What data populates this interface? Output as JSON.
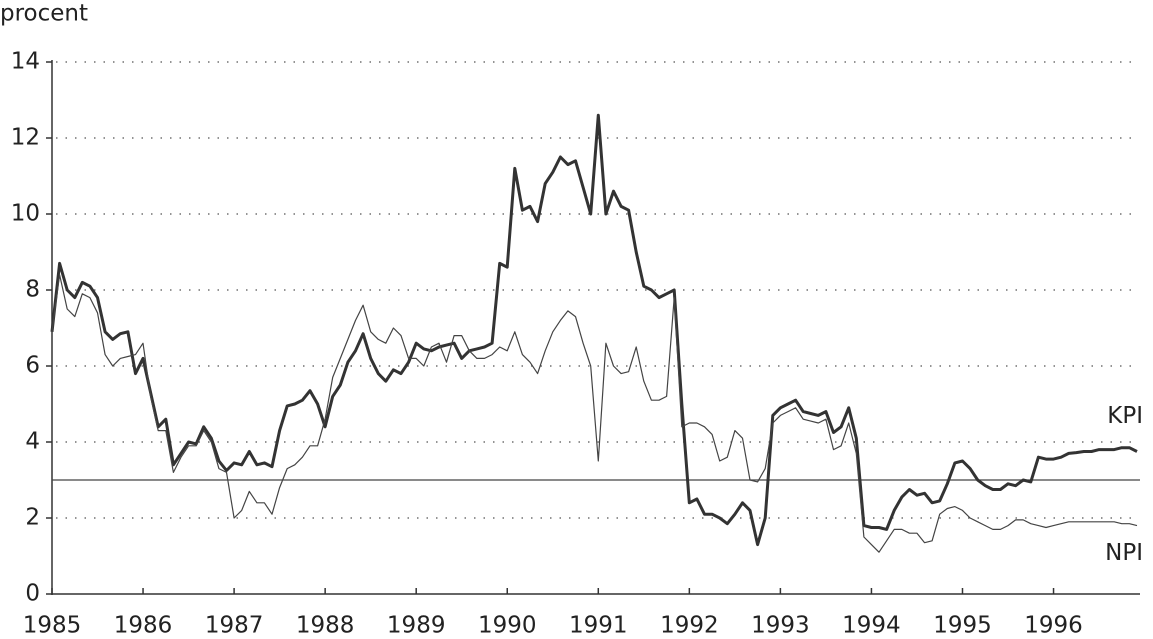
{
  "chart_data": {
    "type": "line",
    "y_label": "procent",
    "categories": [
      "1985",
      null,
      null,
      null,
      null,
      null,
      null,
      null,
      null,
      null,
      null,
      null,
      "1986",
      null,
      null,
      null,
      null,
      null,
      null,
      null,
      null,
      null,
      null,
      null,
      "1987",
      null,
      null,
      null,
      null,
      null,
      null,
      null,
      null,
      null,
      null,
      null,
      "1988",
      null,
      null,
      null,
      null,
      null,
      null,
      null,
      null,
      null,
      null,
      null,
      "1989",
      null,
      null,
      null,
      null,
      null,
      null,
      null,
      null,
      null,
      null,
      null,
      "1990",
      null,
      null,
      null,
      null,
      null,
      null,
      null,
      null,
      null,
      null,
      null,
      "1991",
      null,
      null,
      null,
      null,
      null,
      null,
      null,
      null,
      null,
      null,
      null,
      "1992",
      null,
      null,
      null,
      null,
      null,
      null,
      null,
      null,
      null,
      null,
      null,
      "1993",
      null,
      null,
      null,
      null,
      null,
      null,
      null,
      null,
      null,
      null,
      null,
      "1994",
      null,
      null,
      null,
      null,
      null,
      null,
      null,
      null,
      null,
      null,
      null,
      "1995",
      null,
      null,
      null,
      null,
      null,
      null,
      null,
      null,
      null,
      null,
      null,
      "1996",
      null,
      null,
      null,
      null,
      null,
      null,
      null,
      null,
      null,
      null,
      null
    ],
    "series": [
      {
        "name": "KPI",
        "color": "#333333",
        "width": 3,
        "values": [
          6.9,
          8.7,
          8.0,
          7.8,
          8.2,
          8.1,
          7.8,
          6.9,
          6.7,
          6.85,
          6.9,
          5.8,
          6.2,
          5.3,
          4.4,
          4.6,
          3.4,
          3.7,
          4.0,
          3.95,
          4.4,
          4.1,
          3.5,
          3.25,
          3.45,
          3.4,
          3.75,
          3.4,
          3.45,
          3.35,
          4.3,
          4.95,
          5.0,
          5.1,
          5.35,
          5.0,
          4.4,
          5.2,
          5.5,
          6.1,
          6.4,
          6.85,
          6.2,
          5.8,
          5.6,
          5.9,
          5.8,
          6.1,
          6.6,
          6.45,
          6.4,
          6.5,
          6.55,
          6.6,
          6.2,
          6.4,
          6.45,
          6.5,
          6.6,
          8.7,
          8.6,
          11.2,
          10.1,
          10.2,
          9.8,
          10.8,
          11.1,
          11.5,
          11.3,
          11.4,
          10.7,
          10.0,
          12.6,
          10.0,
          10.6,
          10.2,
          10.1,
          9.0,
          8.1,
          8.0,
          7.8,
          7.9,
          8.0,
          5.0,
          2.4,
          2.5,
          2.1,
          2.1,
          2.0,
          1.85,
          2.1,
          2.4,
          2.2,
          1.3,
          2.0,
          4.7,
          4.9,
          5.0,
          5.1,
          4.8,
          4.75,
          4.7,
          4.8,
          4.25,
          4.4,
          4.9,
          4.1,
          1.8,
          1.75,
          1.75,
          1.7,
          2.2,
          2.55,
          2.75,
          2.6,
          2.65,
          2.4,
          2.45,
          2.9,
          3.45,
          3.5,
          3.3,
          3.0,
          2.85,
          2.75,
          2.75,
          2.9,
          2.85,
          3.0,
          2.95,
          3.6,
          3.55,
          3.55,
          3.6,
          3.7,
          3.72,
          3.75,
          3.75,
          3.8,
          3.8,
          3.8,
          3.85,
          3.85,
          3.75
        ]
      },
      {
        "name": "NPI",
        "color": "#444444",
        "width": 1.2,
        "values": [
          6.9,
          8.4,
          7.5,
          7.3,
          7.9,
          7.8,
          7.4,
          6.3,
          6.0,
          6.2,
          6.25,
          6.3,
          6.6,
          5.2,
          4.3,
          4.3,
          3.2,
          3.6,
          3.9,
          3.9,
          4.3,
          4.0,
          3.3,
          3.2,
          2.0,
          2.2,
          2.7,
          2.4,
          2.4,
          2.1,
          2.8,
          3.3,
          3.4,
          3.6,
          3.9,
          3.9,
          4.6,
          5.7,
          6.2,
          6.7,
          7.2,
          7.6,
          6.9,
          6.7,
          6.6,
          7.0,
          6.8,
          6.2,
          6.2,
          6.0,
          6.5,
          6.6,
          6.1,
          6.8,
          6.8,
          6.4,
          6.2,
          6.2,
          6.3,
          6.5,
          6.4,
          6.9,
          6.3,
          6.1,
          5.8,
          6.4,
          6.9,
          7.2,
          7.45,
          7.3,
          6.6,
          6.0,
          3.5,
          6.6,
          6.0,
          5.8,
          5.85,
          6.5,
          5.6,
          5.1,
          5.1,
          5.2,
          7.8,
          4.4,
          4.5,
          4.5,
          4.4,
          4.2,
          3.5,
          3.6,
          4.3,
          4.1,
          3.0,
          2.95,
          3.3,
          4.5,
          4.7,
          4.8,
          4.9,
          4.6,
          4.55,
          4.5,
          4.6,
          3.8,
          3.9,
          4.5,
          3.7,
          1.5,
          1.3,
          1.1,
          1.4,
          1.7,
          1.7,
          1.6,
          1.6,
          1.35,
          1.4,
          2.1,
          2.25,
          2.3,
          2.2,
          2.0,
          1.9,
          1.8,
          1.7,
          1.7,
          1.8,
          1.95,
          1.95,
          1.85,
          1.8,
          1.75,
          1.8,
          1.85,
          1.9,
          1.9,
          1.9,
          1.9,
          1.9,
          1.9,
          1.9,
          1.85,
          1.85,
          1.8
        ]
      }
    ],
    "reference_line": 3,
    "ylim": [
      0,
      14
    ],
    "yticks": [
      0,
      2,
      4,
      6,
      8,
      10,
      12,
      14
    ],
    "grid": true
  }
}
